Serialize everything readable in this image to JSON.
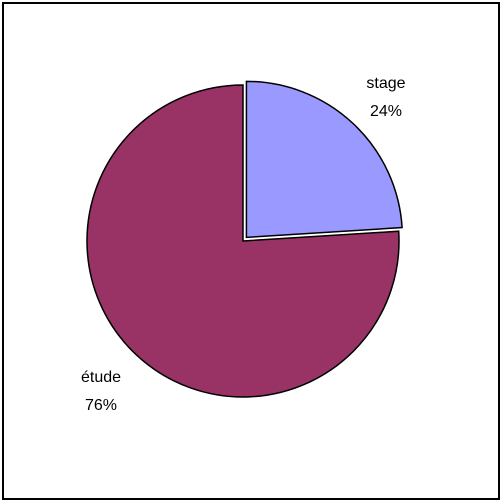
{
  "chart_data": {
    "type": "pie",
    "title": "",
    "slices": [
      {
        "label": "stage",
        "value": 24,
        "value_label": "24%",
        "color": "#9999ff",
        "exploded": true
      },
      {
        "label": "étude",
        "value": 76,
        "value_label": "76%",
        "color": "#993366",
        "exploded": false
      }
    ],
    "start_angle": "12 o'clock, clockwise",
    "legend": "none",
    "border": true
  }
}
